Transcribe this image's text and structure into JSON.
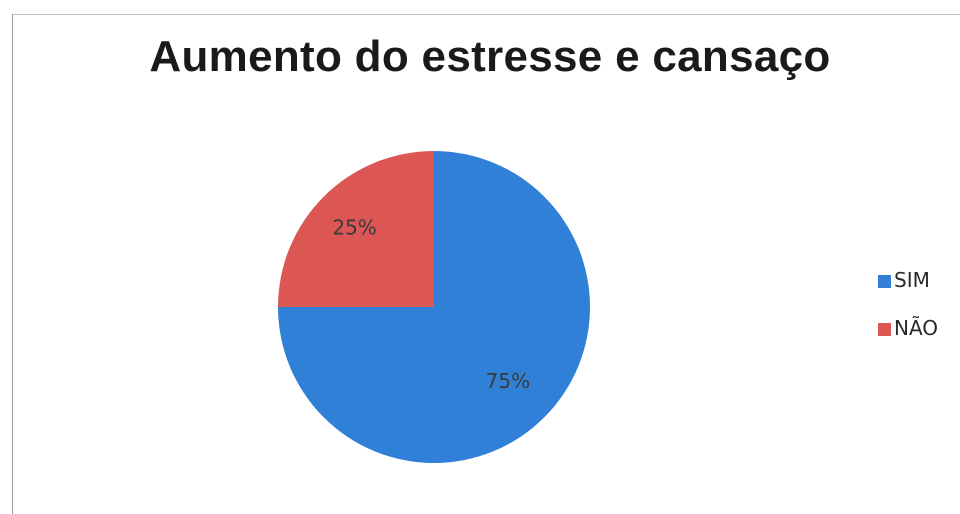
{
  "chart_data": {
    "type": "pie",
    "title": "Aumento do estresse e cansaço",
    "categories": [
      "SIM",
      "NÃO"
    ],
    "values": [
      75,
      25
    ],
    "labels": [
      "75%",
      "25%"
    ],
    "colors": [
      "#2f80d6",
      "#dc5654"
    ],
    "legend_position": "right",
    "start": "top, clockwise"
  }
}
